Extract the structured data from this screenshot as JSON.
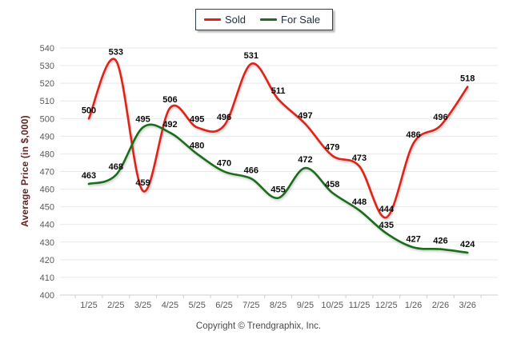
{
  "chart_data": {
    "type": "line",
    "title": "",
    "x": [
      "1/25",
      "2/25",
      "3/25",
      "4/25",
      "5/25",
      "6/25",
      "7/25",
      "8/25",
      "9/25",
      "10/25",
      "11/25",
      "12/25",
      "1/26",
      "2/26",
      "3/26"
    ],
    "series": [
      {
        "name": "Sold",
        "color": "#e02318",
        "values": [
          500,
          533,
          459,
          506,
          495,
          496,
          531,
          511,
          497,
          479,
          473,
          444,
          486,
          496,
          518
        ]
      },
      {
        "name": "For Sale",
        "color": "#1a6e1a",
        "values": [
          463,
          468,
          495,
          492,
          480,
          470,
          466,
          455,
          472,
          458,
          448,
          435,
          427,
          426,
          424
        ]
      }
    ],
    "xlabel": "",
    "ylabel": "Average Price (in $,000)",
    "ylim": [
      400,
      540
    ],
    "ytick_step": 10,
    "yticks": [
      400,
      410,
      420,
      430,
      440,
      450,
      460,
      470,
      480,
      490,
      500,
      510,
      520,
      530,
      540
    ],
    "grid": "horizontal",
    "legend_position": "top-center",
    "data_labels": true,
    "smooth": true
  },
  "legend": {
    "items": [
      {
        "label": "Sold",
        "color": "#e02318"
      },
      {
        "label": "For Sale",
        "color": "#1a6e1a"
      }
    ]
  },
  "footer": {
    "copyright": "Copyright © Trendgraphix, Inc."
  },
  "colors": {
    "sold_line": "#e02318",
    "for_sale_line": "#1a6e1a",
    "gridline": "#e9e9e9",
    "axis_line": "#cfcfcf",
    "axis_text": "#595959",
    "data_label_text": "#0a0a0a",
    "y_title_text": "#632423",
    "legend_border": "#2f4157"
  }
}
